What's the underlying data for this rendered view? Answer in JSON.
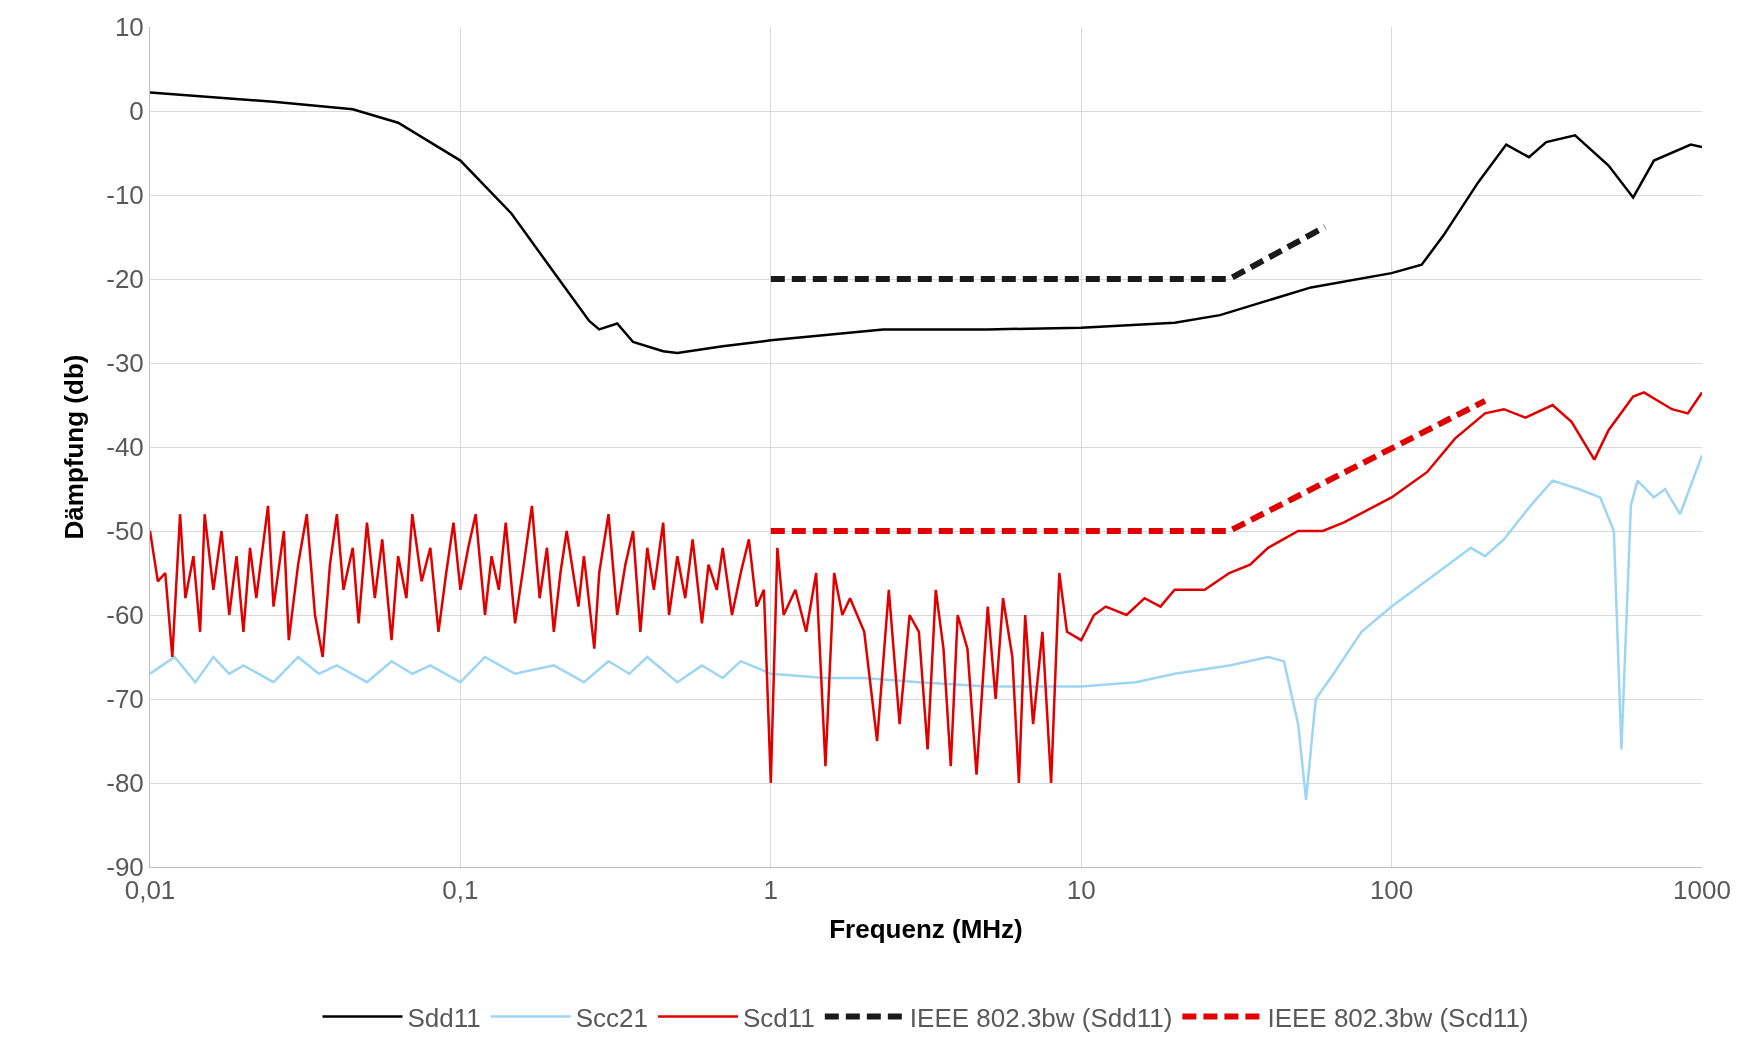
{
  "chart_data": {
    "type": "line",
    "xlabel": "Frequenz (MHz)",
    "ylabel": "Dämpfung (db)",
    "log": "x",
    "xlim": [
      0.01,
      1000
    ],
    "xticks": [
      {
        "value": 0.01,
        "label": "0,01"
      },
      {
        "value": 0.1,
        "label": "0,1"
      },
      1,
      10,
      100,
      1000
    ],
    "ylim": [
      -90,
      10
    ],
    "yticks": [
      -90,
      -80,
      -70,
      -60,
      -50,
      -40,
      -30,
      -20,
      -10,
      0,
      10
    ],
    "grid": true,
    "legend": "bottom",
    "series": [
      {
        "name": "Sdd11",
        "color": "#000000",
        "line_style": "solid",
        "x": [
          0.01,
          0.025,
          0.045,
          0.063,
          0.1,
          0.146,
          0.2,
          0.26,
          0.28,
          0.32,
          0.36,
          0.45,
          0.5,
          0.7,
          1,
          2.3,
          5,
          10,
          20,
          28,
          55,
          100,
          125,
          147,
          190,
          234,
          277,
          315,
          390,
          500,
          600,
          700,
          920,
          1000
        ],
        "values": [
          2.2,
          1.1,
          0.2,
          -1.4,
          -5.9,
          -12.2,
          -19.2,
          -25,
          -26,
          -25.3,
          -27.5,
          -28.6,
          -28.8,
          -28,
          -27.3,
          -26,
          -26,
          -25.8,
          -25.2,
          -24.3,
          -21,
          -19.3,
          -18.3,
          -14.8,
          -8.5,
          -4,
          -5.5,
          -3.7,
          -2.9,
          -6.5,
          -10.3,
          -5.9,
          -4,
          -4.3
        ]
      },
      {
        "name": "Scc21",
        "color": "#9dd6f5",
        "line_style": "solid",
        "x": [
          0.01,
          0.012,
          0.014,
          0.016,
          0.018,
          0.02,
          0.025,
          0.03,
          0.035,
          0.04,
          0.05,
          0.06,
          0.07,
          0.08,
          0.1,
          0.12,
          0.15,
          0.2,
          0.25,
          0.3,
          0.35,
          0.4,
          0.5,
          0.6,
          0.7,
          0.8,
          1,
          1.5,
          2,
          3,
          5,
          8,
          10,
          15,
          20,
          30,
          40,
          45,
          50,
          53,
          57,
          65,
          80,
          100,
          140,
          180,
          200,
          230,
          280,
          330,
          400,
          470,
          520,
          550,
          590,
          620,
          700,
          760,
          850,
          1000
        ],
        "values": [
          -67,
          -65,
          -68,
          -65,
          -67,
          -66,
          -68,
          -65,
          -67,
          -66,
          -68,
          -65.5,
          -67,
          -66,
          -68,
          -65,
          -67,
          -66,
          -68,
          -65.5,
          -67,
          -65,
          -68,
          -66,
          -67.5,
          -65.5,
          -67,
          -67.5,
          -67.5,
          -68,
          -68.5,
          -68.5,
          -68.5,
          -68,
          -67,
          -66,
          -65,
          -65.5,
          -73,
          -82,
          -70,
          -67,
          -62,
          -59,
          -55,
          -52,
          -53,
          -51,
          -47,
          -44,
          -45,
          -46,
          -50,
          -76,
          -47,
          -44,
          -46,
          -45,
          -48,
          -41
        ]
      },
      {
        "name": "Scd11",
        "color": "#e00000",
        "line_style": "solid",
        "x": [
          0.01,
          0.0106,
          0.0112,
          0.0118,
          0.0125,
          0.013,
          0.0138,
          0.0145,
          0.015,
          0.016,
          0.017,
          0.018,
          0.019,
          0.02,
          0.021,
          0.022,
          0.024,
          0.025,
          0.027,
          0.028,
          0.03,
          0.032,
          0.034,
          0.036,
          0.038,
          0.04,
          0.042,
          0.045,
          0.047,
          0.05,
          0.053,
          0.056,
          0.06,
          0.063,
          0.067,
          0.07,
          0.075,
          0.08,
          0.085,
          0.09,
          0.095,
          0.1,
          0.106,
          0.112,
          0.12,
          0.126,
          0.133,
          0.14,
          0.15,
          0.16,
          0.17,
          0.18,
          0.19,
          0.2,
          0.21,
          0.22,
          0.24,
          0.25,
          0.27,
          0.28,
          0.3,
          0.32,
          0.34,
          0.36,
          0.38,
          0.4,
          0.42,
          0.45,
          0.47,
          0.5,
          0.53,
          0.56,
          0.6,
          0.63,
          0.67,
          0.7,
          0.75,
          0.8,
          0.85,
          0.9,
          0.95,
          1.0,
          1.05,
          1.1,
          1.2,
          1.3,
          1.4,
          1.5,
          1.6,
          1.7,
          1.8,
          2.0,
          2.2,
          2.4,
          2.6,
          2.8,
          3.0,
          3.2,
          3.4,
          3.6,
          3.8,
          4.0,
          4.3,
          4.6,
          5.0,
          5.3,
          5.6,
          6.0,
          6.3,
          6.6,
          7.0,
          7.5,
          8.0,
          8.5,
          9.0,
          10,
          11,
          12,
          14,
          16,
          18,
          20,
          25,
          30,
          35,
          40,
          50,
          60,
          70,
          100,
          130,
          160,
          200,
          230,
          270,
          330,
          380,
          450,
          500,
          600,
          650,
          800,
          900,
          1000
        ],
        "values": [
          -50,
          -56,
          -55,
          -65,
          -48,
          -58,
          -53,
          -62,
          -48,
          -57,
          -50,
          -60,
          -53,
          -62,
          -52,
          -58,
          -47,
          -59,
          -50,
          -63,
          -54,
          -48,
          -60,
          -65,
          -54,
          -48,
          -57,
          -52,
          -61,
          -49,
          -58,
          -51,
          -63,
          -53,
          -58,
          -48,
          -56,
          -52,
          -62,
          -55,
          -49,
          -57,
          -52,
          -48,
          -60,
          -53,
          -57,
          -49,
          -61,
          -54,
          -47,
          -58,
          -52,
          -62,
          -55,
          -50,
          -59,
          -53,
          -64,
          -55,
          -48,
          -60,
          -54,
          -50,
          -62,
          -52,
          -57,
          -49,
          -60,
          -53,
          -58,
          -51,
          -61,
          -54,
          -57,
          -52,
          -60,
          -55,
          -51,
          -59,
          -57,
          -80,
          -52,
          -60,
          -57,
          -62,
          -55,
          -78,
          -55,
          -60,
          -58,
          -62,
          -75,
          -57,
          -73,
          -60,
          -62,
          -76,
          -57,
          -64,
          -78,
          -60,
          -64,
          -79,
          -59,
          -70,
          -58,
          -65,
          -80,
          -60,
          -73,
          -62,
          -80,
          -55,
          -62,
          -63,
          -60,
          -59,
          -60,
          -58,
          -59,
          -57,
          -57,
          -55,
          -54,
          -52,
          -50,
          -50,
          -49,
          -46,
          -43,
          -39,
          -36,
          -35.5,
          -36.5,
          -35,
          -37,
          -41.5,
          -38,
          -34,
          -33.5,
          -35.5,
          -36,
          -33.5
        ]
      },
      {
        "name": "IEEE 802.3bw (Sdd11)",
        "color": "#1a1a1a",
        "line_style": "dashed",
        "x": [
          1,
          30,
          61
        ],
        "values": [
          -20,
          -20,
          -13.8
        ]
      },
      {
        "name": "IEEE 802.3bw (Scd11)",
        "color": "#e00000",
        "line_style": "dashed",
        "x": [
          1,
          30,
          200
        ],
        "values": [
          -50,
          -50,
          -34.5
        ]
      }
    ]
  }
}
